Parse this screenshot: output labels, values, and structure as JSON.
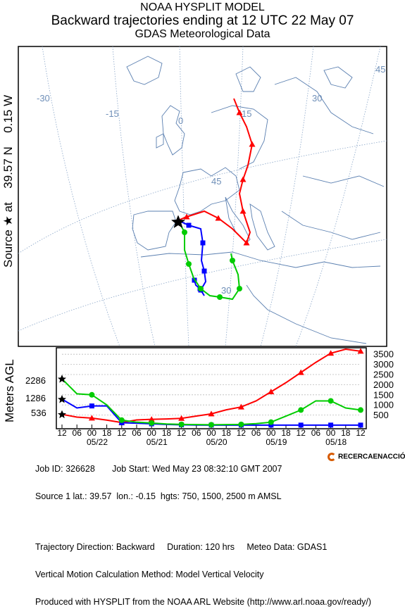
{
  "header": {
    "line1": "NOAA HYSPLIT MODEL",
    "line2": "Backward trajectories ending at 12 UTC 22 May 07",
    "line3": "GDAS Meteorological Data"
  },
  "source_label": {
    "prefix": "Source",
    "star": "★",
    "at": "at",
    "lat": "39.57 N",
    "lon": "0.15 W"
  },
  "map": {
    "longitude_labels": [
      "-30",
      "-15",
      "0",
      "15",
      "30",
      "45"
    ],
    "latitude_labels": [
      "45",
      "30"
    ]
  },
  "chart_data": {
    "type": "line",
    "ylabel": "Meters AGL",
    "x_tick_labels": [
      "12",
      "06",
      "00",
      "18",
      "12",
      "06",
      "00",
      "18",
      "12",
      "06",
      "00",
      "18",
      "12",
      "06",
      "00",
      "18",
      "12",
      "06",
      "00",
      "18",
      "12"
    ],
    "date_labels": [
      "05/22",
      "05/21",
      "05/20",
      "05/19",
      "05/18"
    ],
    "y_ticks": [
      500,
      1000,
      1500,
      2000,
      2500,
      3000,
      3500
    ],
    "ylim": [
      0,
      3750
    ],
    "start_height_labels": [
      "2286",
      "1286",
      "536"
    ],
    "hours_back": [
      0,
      6,
      12,
      18,
      24,
      30,
      36,
      42,
      48,
      54,
      60,
      66,
      72,
      78,
      84,
      90,
      96,
      102,
      108,
      114,
      120
    ],
    "series": [
      {
        "color": "#ff0000",
        "marker": "triangle",
        "values": [
          536,
          400,
          350,
          250,
          130,
          260,
          290,
          310,
          340,
          450,
          560,
          760,
          900,
          1200,
          1650,
          2100,
          2600,
          3100,
          3550,
          3750,
          3650
        ]
      },
      {
        "color": "#0000ff",
        "marker": "square",
        "values": [
          1286,
          850,
          950,
          950,
          120,
          100,
          70,
          40,
          20,
          10,
          5,
          5,
          5,
          5,
          5,
          5,
          5,
          5,
          5,
          5,
          5
        ]
      },
      {
        "color": "#00cc00",
        "marker": "circle",
        "values": [
          2286,
          1550,
          1500,
          1000,
          250,
          150,
          110,
          60,
          40,
          30,
          20,
          30,
          40,
          80,
          150,
          450,
          750,
          1200,
          1200,
          850,
          750
        ]
      }
    ]
  },
  "map_tracks": [
    {
      "color": "#ff0000",
      "marker": "triangle"
    },
    {
      "color": "#0000ff",
      "marker": "square"
    },
    {
      "color": "#00cc00",
      "marker": "circle"
    }
  ],
  "footer": {
    "line1": "Job ID: 326628       Job Start: Wed May 23 08:32:10 GMT 2007",
    "line2": "Source 1 lat.: 39.57  lon.: -0.15  hgts: 750, 1500, 2500 m AMSL",
    "line3": "Trajectory Direction: Backward     Duration: 120 hrs     Meteo Data: GDAS1",
    "line4": "Vertical Motion Calculation Method: Model Vertical Velocity",
    "line5": "Produced with HYSPLIT from the NOAA ARL Website (http://www.arl.noaa.gov/ready/)"
  },
  "logo": {
    "text": "RECERCAENACCIÓ",
    "color": "#d65a00"
  }
}
